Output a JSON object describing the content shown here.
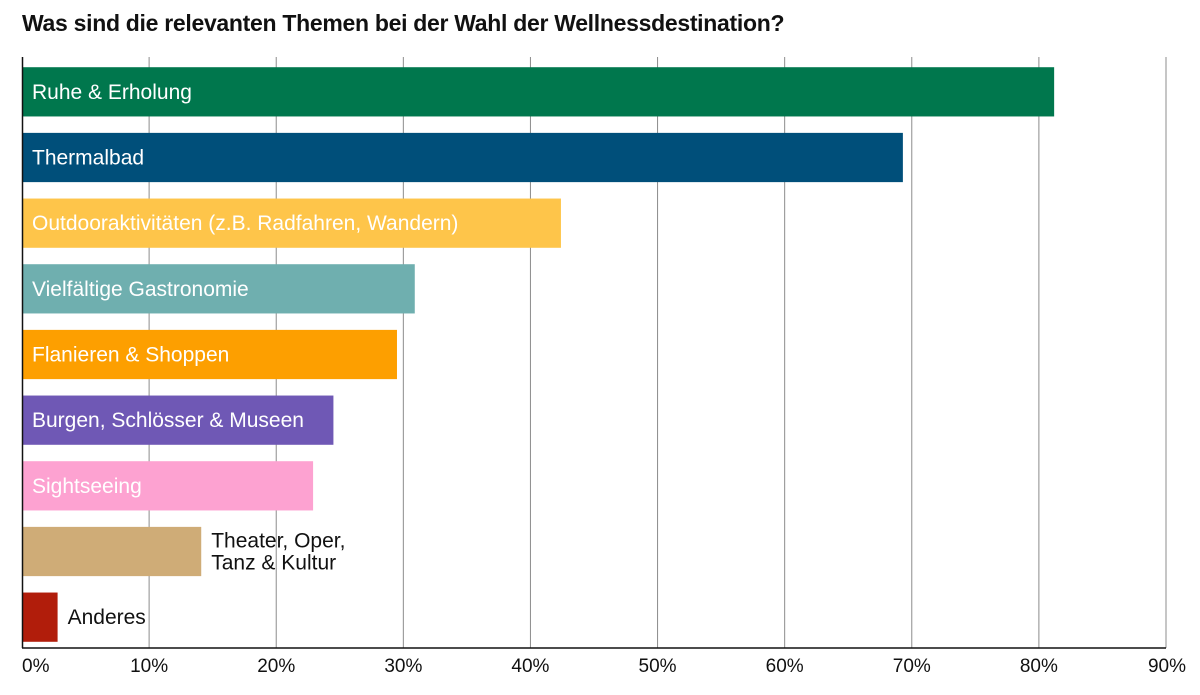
{
  "chart_data": {
    "type": "bar",
    "orientation": "horizontal",
    "title": "Was sind die relevanten Themen bei der Wahl der Wellnessdestination?",
    "xlabel": "",
    "ylabel": "",
    "xlim": [
      0,
      90
    ],
    "x_ticks": [
      "0%",
      "10%",
      "20%",
      "30%",
      "40%",
      "50%",
      "60%",
      "70%",
      "80%",
      "90%"
    ],
    "grid": "vertical",
    "legend": "none",
    "categories": [
      "Ruhe & Erholung",
      "Thermalbad",
      "Outdooraktivitäten (z.B. Radfahren, Wandern)",
      "Vielfältige Gastronomie",
      "Flanieren & Shoppen",
      "Burgen, Schlösser & Museen",
      "Sightseeing",
      "Theater, Oper,\nTanz & Kultur",
      "Anderes"
    ],
    "values": [
      81.2,
      69.3,
      42.4,
      30.9,
      29.5,
      24.5,
      22.9,
      14.1,
      2.8
    ],
    "colors": [
      "#00774d",
      "#004f7a",
      "#fec54a",
      "#6fafaf",
      "#fd9f00",
      "#6f58b5",
      "#fda2d1",
      "#cfac77",
      "#b11d0b"
    ]
  }
}
